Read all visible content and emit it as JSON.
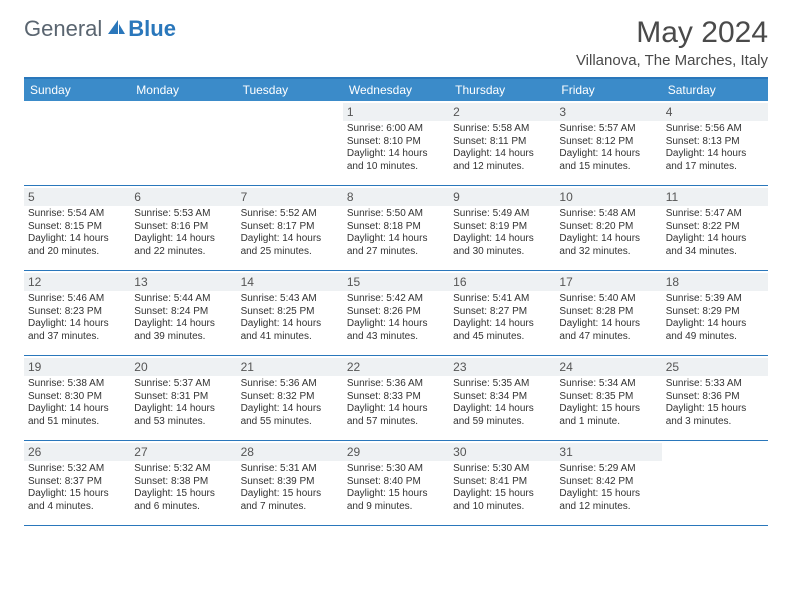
{
  "logo": {
    "part1": "General",
    "part2": "Blue"
  },
  "title": "May 2024",
  "location": "Villanova, The Marches, Italy",
  "day_headers": [
    "Sunday",
    "Monday",
    "Tuesday",
    "Wednesday",
    "Thursday",
    "Friday",
    "Saturday"
  ],
  "colors": {
    "header_bg": "#3b8bc9",
    "border": "#2a77bb",
    "daynum_bg": "#eef1f3",
    "text": "#333333"
  },
  "weeks": [
    [
      {
        "blank": true
      },
      {
        "blank": true
      },
      {
        "blank": true
      },
      {
        "n": "1",
        "sr": "6:00 AM",
        "ss": "8:10 PM",
        "dl": "14 hours and 10 minutes."
      },
      {
        "n": "2",
        "sr": "5:58 AM",
        "ss": "8:11 PM",
        "dl": "14 hours and 12 minutes."
      },
      {
        "n": "3",
        "sr": "5:57 AM",
        "ss": "8:12 PM",
        "dl": "14 hours and 15 minutes."
      },
      {
        "n": "4",
        "sr": "5:56 AM",
        "ss": "8:13 PM",
        "dl": "14 hours and 17 minutes."
      }
    ],
    [
      {
        "n": "5",
        "sr": "5:54 AM",
        "ss": "8:15 PM",
        "dl": "14 hours and 20 minutes."
      },
      {
        "n": "6",
        "sr": "5:53 AM",
        "ss": "8:16 PM",
        "dl": "14 hours and 22 minutes."
      },
      {
        "n": "7",
        "sr": "5:52 AM",
        "ss": "8:17 PM",
        "dl": "14 hours and 25 minutes."
      },
      {
        "n": "8",
        "sr": "5:50 AM",
        "ss": "8:18 PM",
        "dl": "14 hours and 27 minutes."
      },
      {
        "n": "9",
        "sr": "5:49 AM",
        "ss": "8:19 PM",
        "dl": "14 hours and 30 minutes."
      },
      {
        "n": "10",
        "sr": "5:48 AM",
        "ss": "8:20 PM",
        "dl": "14 hours and 32 minutes."
      },
      {
        "n": "11",
        "sr": "5:47 AM",
        "ss": "8:22 PM",
        "dl": "14 hours and 34 minutes."
      }
    ],
    [
      {
        "n": "12",
        "sr": "5:46 AM",
        "ss": "8:23 PM",
        "dl": "14 hours and 37 minutes."
      },
      {
        "n": "13",
        "sr": "5:44 AM",
        "ss": "8:24 PM",
        "dl": "14 hours and 39 minutes."
      },
      {
        "n": "14",
        "sr": "5:43 AM",
        "ss": "8:25 PM",
        "dl": "14 hours and 41 minutes."
      },
      {
        "n": "15",
        "sr": "5:42 AM",
        "ss": "8:26 PM",
        "dl": "14 hours and 43 minutes."
      },
      {
        "n": "16",
        "sr": "5:41 AM",
        "ss": "8:27 PM",
        "dl": "14 hours and 45 minutes."
      },
      {
        "n": "17",
        "sr": "5:40 AM",
        "ss": "8:28 PM",
        "dl": "14 hours and 47 minutes."
      },
      {
        "n": "18",
        "sr": "5:39 AM",
        "ss": "8:29 PM",
        "dl": "14 hours and 49 minutes."
      }
    ],
    [
      {
        "n": "19",
        "sr": "5:38 AM",
        "ss": "8:30 PM",
        "dl": "14 hours and 51 minutes."
      },
      {
        "n": "20",
        "sr": "5:37 AM",
        "ss": "8:31 PM",
        "dl": "14 hours and 53 minutes."
      },
      {
        "n": "21",
        "sr": "5:36 AM",
        "ss": "8:32 PM",
        "dl": "14 hours and 55 minutes."
      },
      {
        "n": "22",
        "sr": "5:36 AM",
        "ss": "8:33 PM",
        "dl": "14 hours and 57 minutes."
      },
      {
        "n": "23",
        "sr": "5:35 AM",
        "ss": "8:34 PM",
        "dl": "14 hours and 59 minutes."
      },
      {
        "n": "24",
        "sr": "5:34 AM",
        "ss": "8:35 PM",
        "dl": "15 hours and 1 minute."
      },
      {
        "n": "25",
        "sr": "5:33 AM",
        "ss": "8:36 PM",
        "dl": "15 hours and 3 minutes."
      }
    ],
    [
      {
        "n": "26",
        "sr": "5:32 AM",
        "ss": "8:37 PM",
        "dl": "15 hours and 4 minutes."
      },
      {
        "n": "27",
        "sr": "5:32 AM",
        "ss": "8:38 PM",
        "dl": "15 hours and 6 minutes."
      },
      {
        "n": "28",
        "sr": "5:31 AM",
        "ss": "8:39 PM",
        "dl": "15 hours and 7 minutes."
      },
      {
        "n": "29",
        "sr": "5:30 AM",
        "ss": "8:40 PM",
        "dl": "15 hours and 9 minutes."
      },
      {
        "n": "30",
        "sr": "5:30 AM",
        "ss": "8:41 PM",
        "dl": "15 hours and 10 minutes."
      },
      {
        "n": "31",
        "sr": "5:29 AM",
        "ss": "8:42 PM",
        "dl": "15 hours and 12 minutes."
      },
      {
        "blank": true
      }
    ]
  ]
}
